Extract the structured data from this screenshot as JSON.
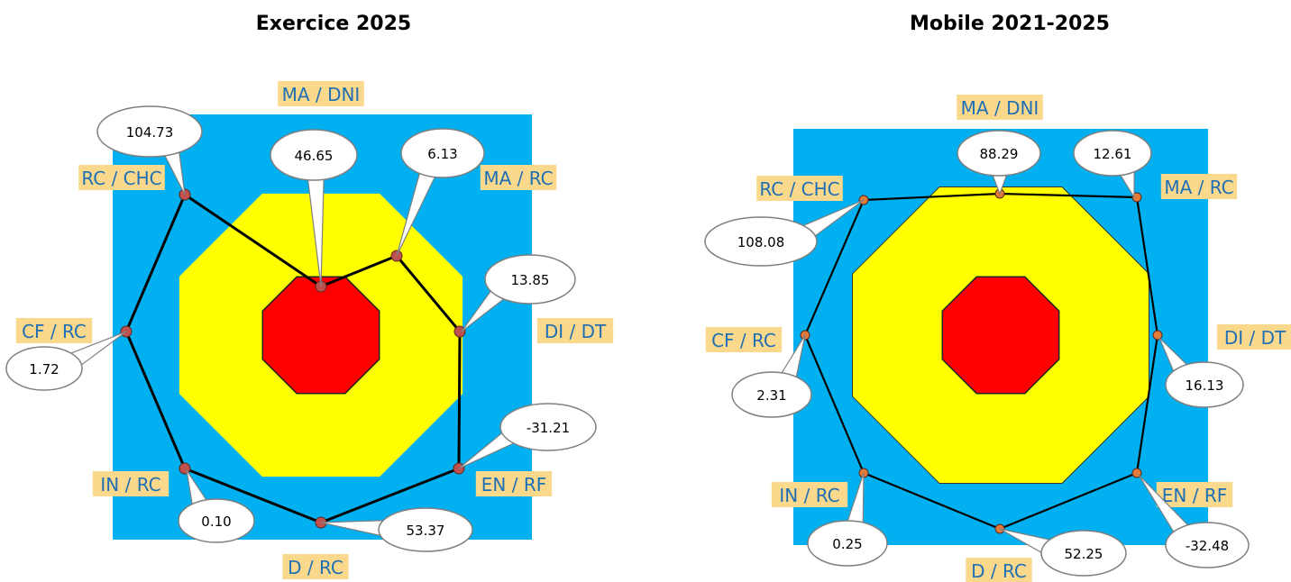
{
  "charts_meta": {
    "colors": {
      "background": "#00b0f0",
      "yellow": "#ffff00",
      "red": "#ff0000",
      "label_bg": "#fbd98c",
      "label_text": "#1f6fb5",
      "marker_left": "#c0504d",
      "marker_right": "#e07b39",
      "line": "#000000"
    }
  },
  "chart_data": [
    {
      "type": "radar",
      "title": "Exercice 2025",
      "axes": [
        "MA / DNI",
        "MA / RC",
        "DI / DT",
        "EN / RF",
        "D / RC",
        "IN / RC",
        "CF / RC",
        "RC / CHC"
      ],
      "values": [
        46.65,
        6.13,
        13.85,
        -31.21,
        53.37,
        0.1,
        1.72,
        104.73
      ],
      "value_labels": [
        "46.65",
        "6.13",
        "13.85",
        "-31.21",
        "53.37",
        "0.10",
        "1.72",
        "104.73"
      ]
    },
    {
      "type": "radar",
      "title": "Mobile 2021-2025",
      "axes": [
        "MA / DNI",
        "MA / RC",
        "DI / DT",
        "EN / RF",
        "D / RC",
        "IN / RC",
        "CF / RC",
        "RC / CHC"
      ],
      "values": [
        88.29,
        12.61,
        16.13,
        -32.48,
        52.25,
        0.25,
        2.31,
        108.08
      ],
      "value_labels": [
        "88.29",
        "12.61",
        "16.13",
        "-32.48",
        "52.25",
        "0.25",
        "2.31",
        "108.08"
      ]
    }
  ]
}
